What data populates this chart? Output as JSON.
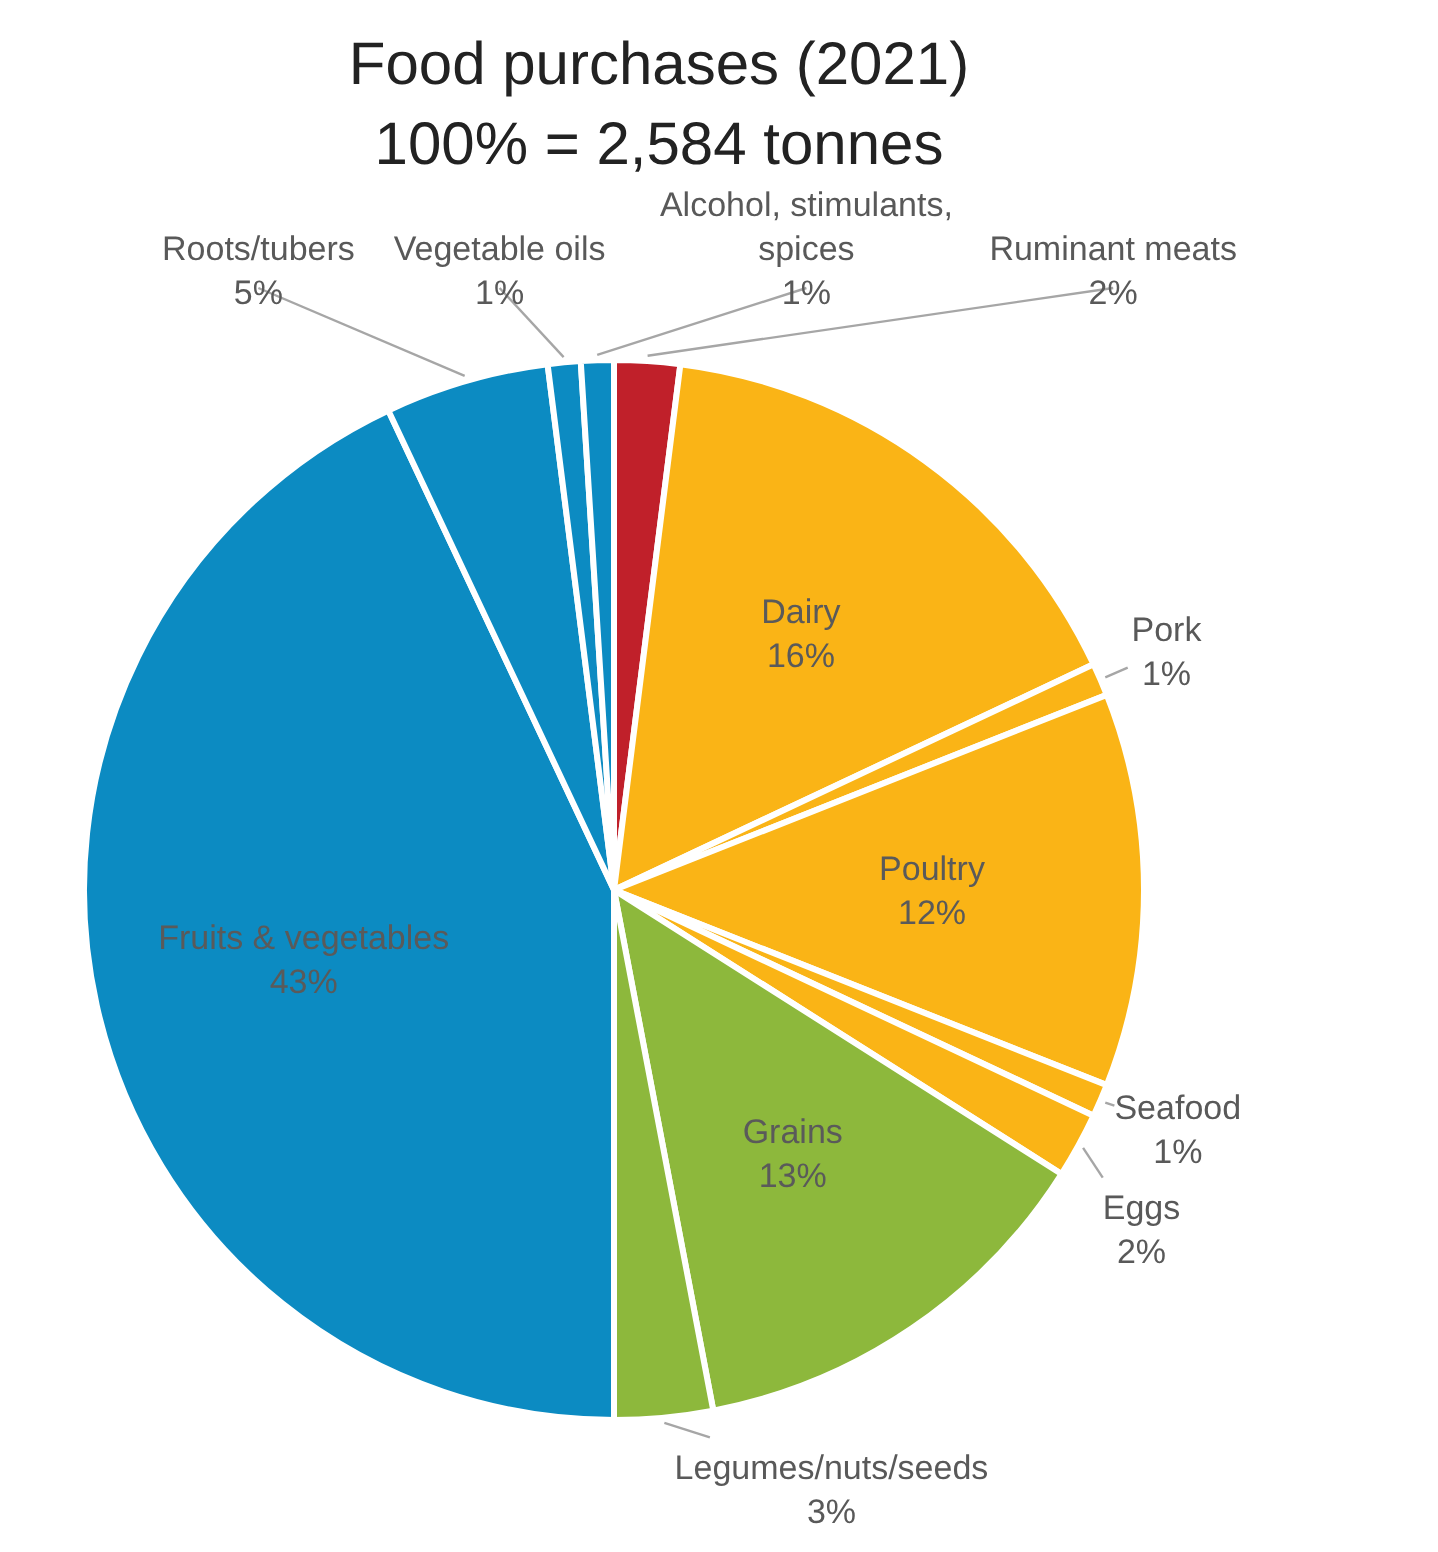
{
  "chart_data": {
    "type": "pie",
    "title": "Food purchases (2021)",
    "subtitle": "100% = 2,584 tonnes",
    "categories": [
      "Ruminant meats",
      "Dairy",
      "Pork",
      "Poultry",
      "Seafood",
      "Eggs",
      "Grains",
      "Legumes/nuts/seeds",
      "Fruits & vegetables",
      "Roots/tubers",
      "Vegetable oils",
      "Alcohol, stimulants, spices"
    ],
    "values": [
      2,
      16,
      1,
      12,
      1,
      2,
      13,
      3,
      43,
      5,
      1,
      1
    ],
    "value_labels": [
      "2%",
      "16%",
      "1%",
      "12%",
      "1%",
      "2%",
      "13%",
      "3%",
      "43%",
      "5%",
      "1%",
      "1%"
    ],
    "colors": [
      "#c0202a",
      "#fab416",
      "#fab416",
      "#fab416",
      "#fab416",
      "#fab416",
      "#8db83c",
      "#8db83c",
      "#0c8bc2",
      "#0c8bc2",
      "#0c8bc2",
      "#0c8bc2"
    ],
    "legend": false
  }
}
